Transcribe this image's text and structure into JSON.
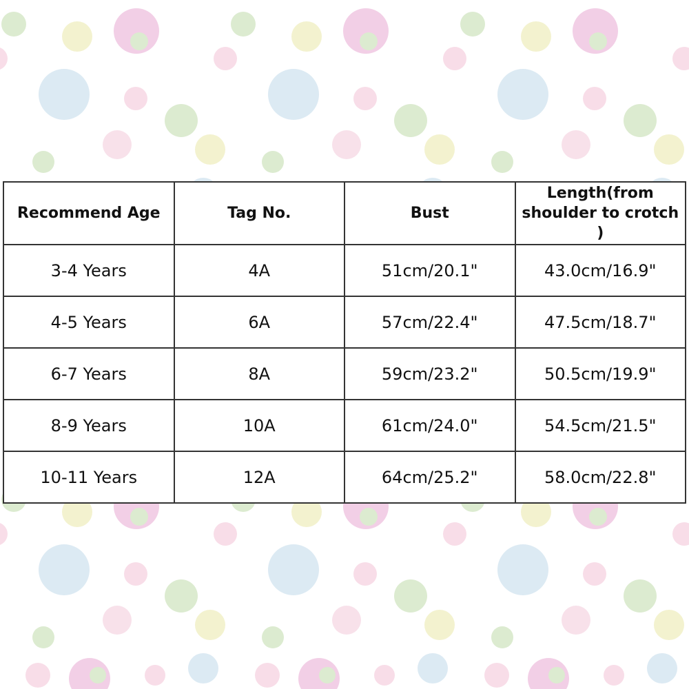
{
  "table": {
    "header": [
      "Recommend Age",
      "Tag No.",
      "Bust",
      "Length(from\nshoulder to crotch )"
    ],
    "rows": [
      [
        "3-4 Years",
        "4A",
        "51cm/20.1\"",
        "43.0cm/16.9\""
      ],
      [
        "4-5 Years",
        "6A",
        "57cm/22.4\"",
        "47.5cm/18.7\""
      ],
      [
        "6-7 Years",
        "8A",
        "59cm/23.2\"",
        "50.5cm/19.9\""
      ],
      [
        "8-9 Years",
        "10A",
        "61cm/24.0\"",
        "54.5cm/21.5\""
      ],
      [
        "10-11 Years",
        "12A",
        "64cm/25.2\"",
        "58.0cm/22.8\""
      ]
    ]
  }
}
